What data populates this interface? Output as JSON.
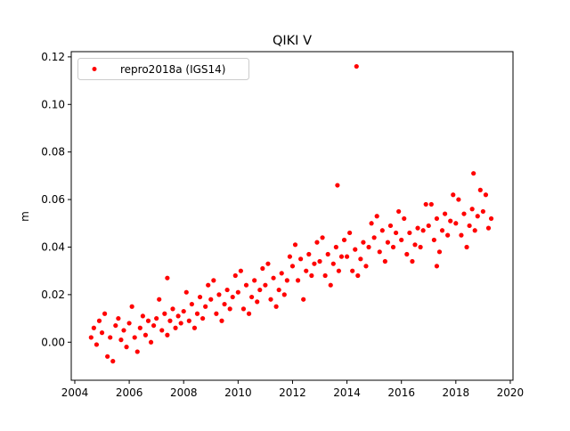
{
  "chart_data": {
    "type": "scatter",
    "title": "QIKI V",
    "xlabel": "",
    "ylabel": "m",
    "xlim": [
      2003.87,
      2020.1
    ],
    "ylim": [
      -0.016,
      0.1222
    ],
    "xticks": [
      2004,
      2006,
      2008,
      2010,
      2012,
      2014,
      2016,
      2018,
      2020
    ],
    "xtick_labels": [
      "2004",
      "2006",
      "2008",
      "2010",
      "2012",
      "2014",
      "2016",
      "2018",
      "2020"
    ],
    "yticks": [
      0.0,
      0.02,
      0.04,
      0.06,
      0.08,
      0.1,
      0.12
    ],
    "ytick_labels": [
      "0.00",
      "0.02",
      "0.04",
      "0.06",
      "0.08",
      "0.10",
      "0.12"
    ],
    "grid": false,
    "legend": {
      "placement": "top-left",
      "entries": [
        "repro2018a (IGS14)"
      ]
    },
    "series": [
      {
        "name": "repro2018a (IGS14)",
        "color": "#ff0000",
        "x_start": 2004.6,
        "x_step": 0.1,
        "y": [
          0.002,
          0.006,
          -0.001,
          0.009,
          0.004,
          0.012,
          -0.006,
          0.002,
          -0.008,
          0.007,
          0.01,
          0.001,
          0.005,
          -0.002,
          0.008,
          0.015,
          0.002,
          -0.004,
          0.006,
          0.011,
          0.003,
          0.009,
          0.0,
          0.007,
          0.01,
          0.018,
          0.005,
          0.012,
          0.003,
          0.009,
          0.014,
          0.006,
          0.011,
          0.008,
          0.013,
          0.021,
          0.009,
          0.016,
          0.006,
          0.012,
          0.019,
          0.01,
          0.015,
          0.024,
          0.018,
          0.026,
          0.012,
          0.02,
          0.009,
          0.016,
          0.022,
          0.014,
          0.019,
          0.028,
          0.021,
          0.03,
          0.014,
          0.024,
          0.012,
          0.019,
          0.026,
          0.017,
          0.022,
          0.031,
          0.024,
          0.033,
          0.018,
          0.027,
          0.015,
          0.022,
          0.029,
          0.02,
          0.026,
          0.036,
          0.032,
          0.041,
          0.026,
          0.035,
          0.018,
          0.03,
          0.037,
          0.028,
          0.033,
          0.042,
          0.034,
          0.044,
          0.028,
          0.037,
          0.024,
          0.033,
          0.04,
          0.03,
          0.036,
          0.043,
          0.036,
          0.046,
          0.03,
          0.039,
          0.028,
          0.035,
          0.042,
          0.032,
          0.04,
          0.05,
          0.044,
          0.053,
          0.038,
          0.047,
          0.034,
          0.042,
          0.049,
          0.04,
          0.046,
          0.055,
          0.043,
          0.052,
          0.037,
          0.046,
          0.034,
          0.041,
          0.048,
          0.04,
          0.047,
          0.058,
          0.049,
          0.058,
          0.043,
          0.052,
          0.038,
          0.047,
          0.054,
          0.045,
          0.051,
          0.062,
          0.05,
          0.06,
          0.045,
          0.054,
          0.04,
          0.049,
          0.056,
          0.047,
          0.053,
          0.064,
          0.055,
          0.062,
          0.048,
          0.052
        ],
        "extra_points": [
          [
            2014.35,
            0.116
          ],
          [
            2013.65,
            0.066
          ],
          [
            2018.65,
            0.071
          ],
          [
            2007.4,
            0.027
          ],
          [
            2017.3,
            0.032
          ]
        ]
      }
    ]
  }
}
